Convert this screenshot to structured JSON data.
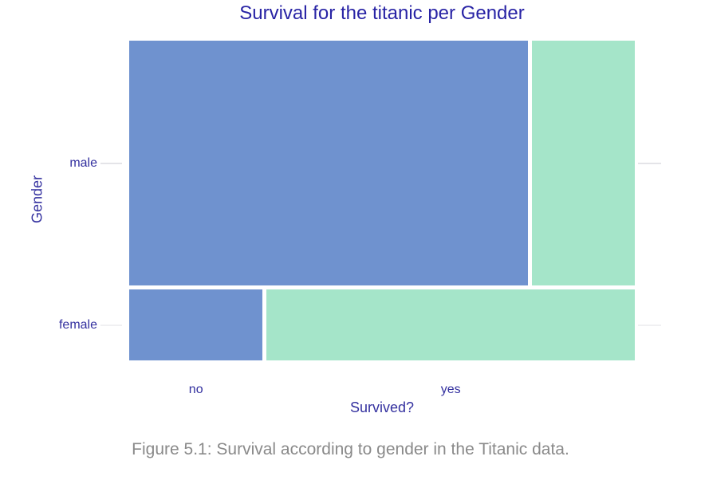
{
  "page": {
    "caption": "Figure 5.1: Survival according to gender in the Titanic data."
  },
  "chart_data": {
    "type": "mosaic",
    "title": "Survival for the titanic per Gender",
    "xlabel": "Survived?",
    "ylabel": "Gender",
    "x_categories": [
      "no",
      "yes"
    ],
    "y_categories": [
      "male",
      "female"
    ],
    "legend": "none",
    "grid": "off",
    "colors": {
      "no": "#6f92cf",
      "yes": "#a5e5c9"
    },
    "title_color": "#2823a5",
    "label_color": "#33309f",
    "caption_color": "#8a8a8a",
    "tick_color": "#e4e4e8",
    "rows": [
      {
        "label": "male",
        "height_frac": 0.7755,
        "cells": [
          {
            "x": "no",
            "frac": 0.795
          },
          {
            "x": "yes",
            "frac": 0.205
          }
        ]
      },
      {
        "label": "female",
        "height_frac": 0.2245,
        "cells": [
          {
            "x": "no",
            "frac": 0.266
          },
          {
            "x": "yes",
            "frac": 0.734
          }
        ]
      }
    ]
  }
}
